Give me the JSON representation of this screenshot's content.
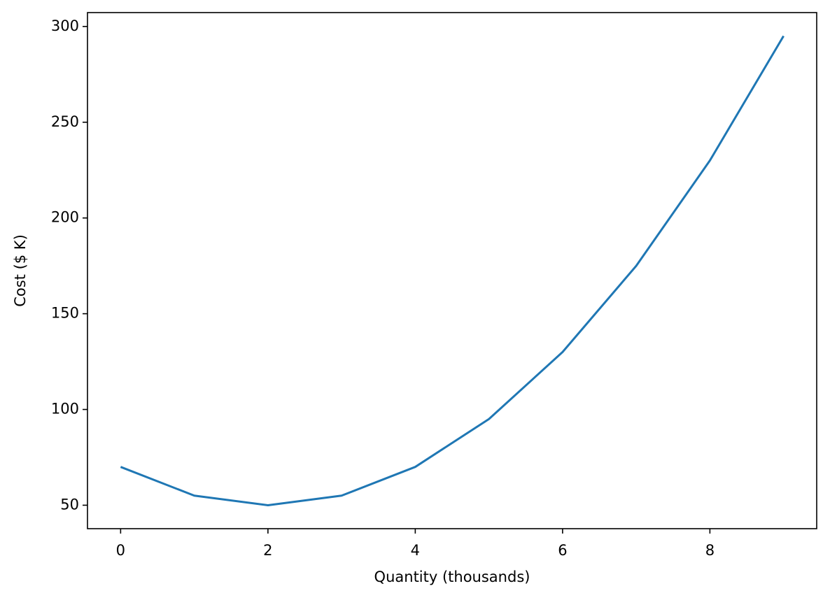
{
  "chart_data": {
    "type": "line",
    "x_label": "Quantity (thousands)",
    "y_label": "Cost ($ K)",
    "x": [
      0,
      1,
      2,
      3,
      4,
      5,
      6,
      7,
      8,
      9
    ],
    "series": [
      {
        "color": "#1f77b4",
        "values": [
          70,
          55,
          50,
          55,
          70,
          95,
          130,
          175,
          230,
          295
        ]
      }
    ],
    "xlim": [
      -0.45,
      9.45
    ],
    "xticks": [
      0,
      2,
      4,
      6,
      8
    ],
    "ylim": [
      37.75,
      307.25
    ],
    "yticks": [
      50,
      100,
      150,
      200,
      250,
      300
    ],
    "grid": false
  }
}
